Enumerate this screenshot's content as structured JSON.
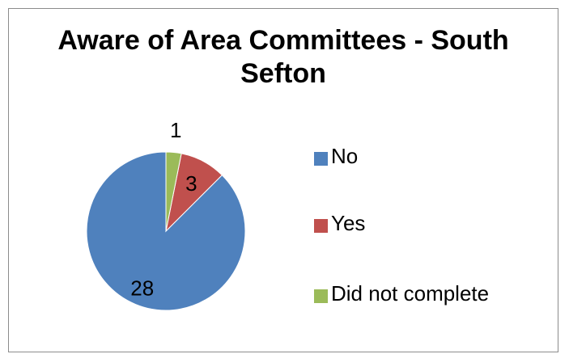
{
  "chart_data": {
    "type": "pie",
    "title": "Aware of Area Committees - South Sefton",
    "title_lines": [
      "Aware of Area Committees - South",
      "Sefton"
    ],
    "categories": [
      "No",
      "Yes",
      "Did not complete"
    ],
    "values": [
      28,
      3,
      1
    ],
    "data_labels": [
      "28",
      "3",
      "1"
    ],
    "colors": [
      "#4f81bd",
      "#c0504d",
      "#9bbb59"
    ],
    "legend_position": "right"
  }
}
